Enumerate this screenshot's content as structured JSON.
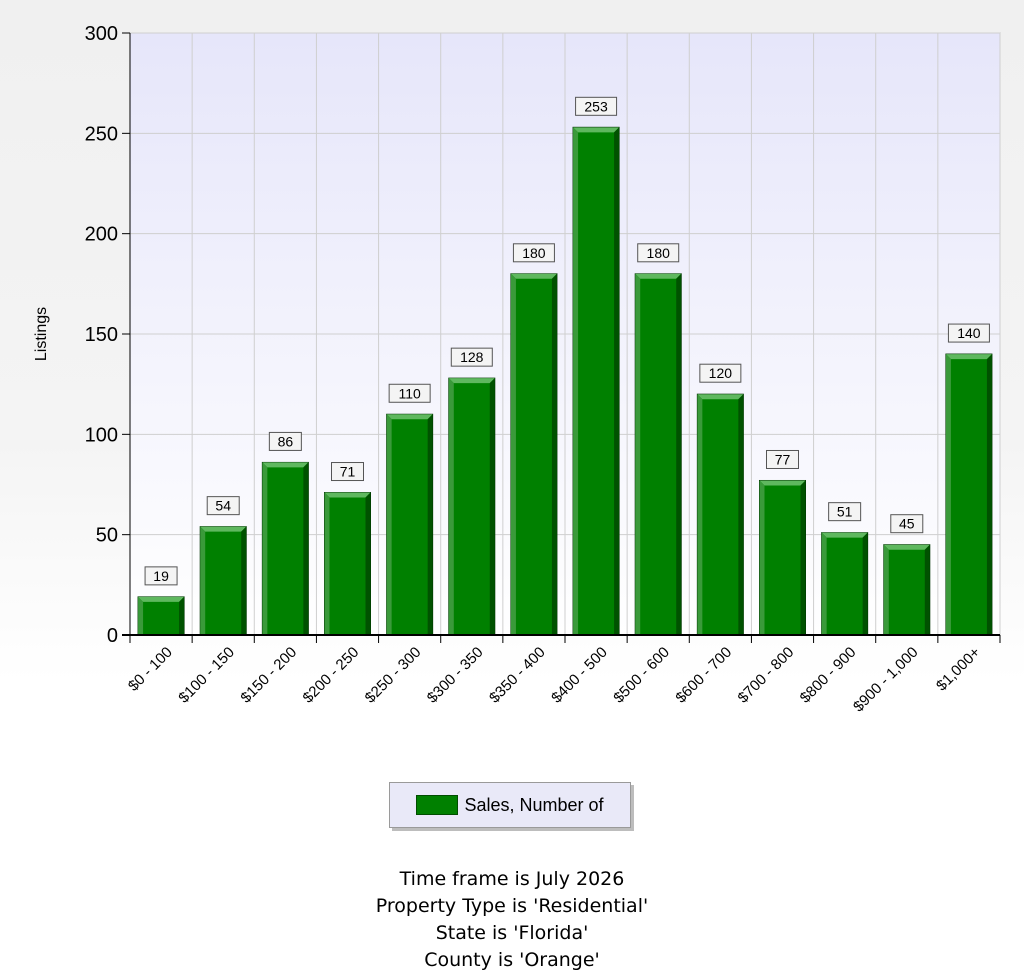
{
  "chart_data": {
    "type": "bar",
    "title": "",
    "xlabel": "",
    "ylabel": "Listings",
    "ylim": [
      0,
      300
    ],
    "yticks": [
      0,
      50,
      100,
      150,
      200,
      250,
      300
    ],
    "grid": true,
    "categories": [
      "$0 - 100",
      "$100 - 150",
      "$150 - 200",
      "$200 - 250",
      "$250 - 300",
      "$300 - 350",
      "$350 - 400",
      "$400 - 500",
      "$500 - 600",
      "$600 - 700",
      "$700 - 800",
      "$800 - 900",
      "$900 - 1,000",
      "$1,000+"
    ],
    "series": [
      {
        "name": "Sales, Number of",
        "color": "#008000",
        "values": [
          19,
          54,
          86,
          71,
          110,
          128,
          180,
          253,
          180,
          120,
          77,
          51,
          45,
          140
        ]
      }
    ],
    "legend_position": "bottom"
  },
  "legend": {
    "label": "Sales, Number of"
  },
  "footer": {
    "line1": "Time frame is July 2026",
    "line2": "Property Type is 'Residential'",
    "line3": "State is 'Florida'",
    "line4": "County is 'Orange'"
  }
}
